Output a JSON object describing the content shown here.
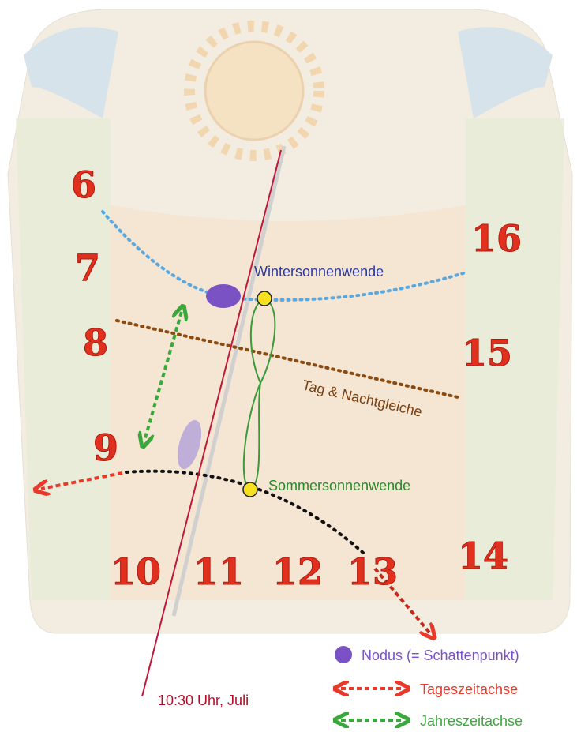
{
  "hour_labels": [
    "6",
    "7",
    "8",
    "9",
    "10",
    "11",
    "12",
    "13",
    "14",
    "15",
    "16"
  ],
  "annotations": {
    "winter": "Wintersonnenwende",
    "equinox": "Tag & Nachtgleiche",
    "summer": "Sommersonnenwende",
    "time": "10:30 Uhr, Juli"
  },
  "legend": [
    "Nodus (= Schattenpunkt)",
    "Tageszeitachse",
    "Jahreszeitachse"
  ]
}
